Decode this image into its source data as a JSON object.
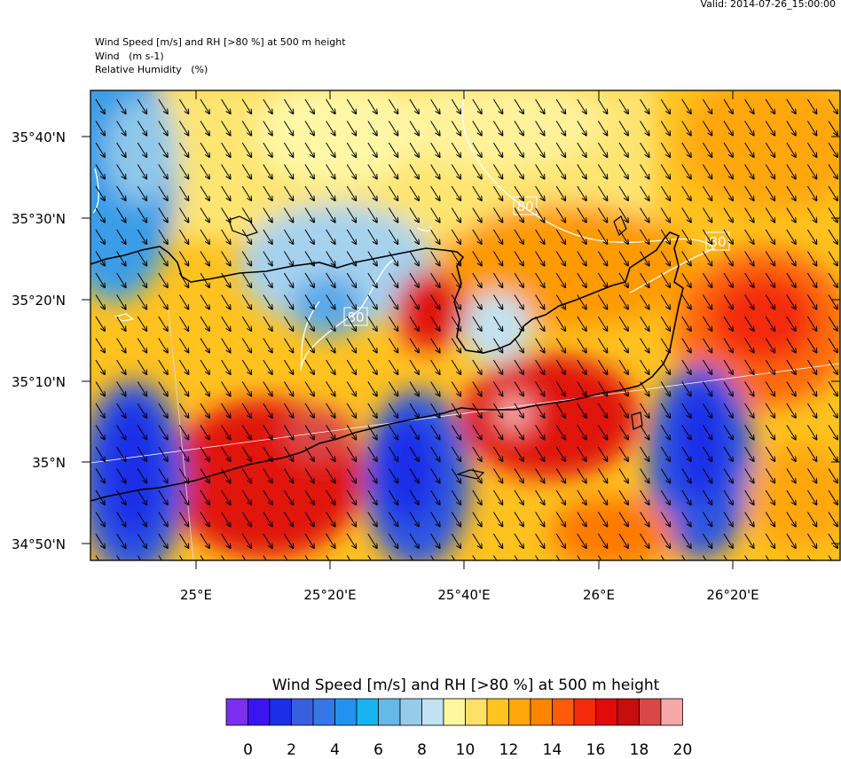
{
  "header": {
    "valid": "Valid: 2014-07-26_15:00:00",
    "line1": "Wind Speed [m/s] and RH [>80 %] at 500 m height",
    "line2": "Wind   (m s-1)",
    "line3": "Relative Humidity   (%)"
  },
  "map": {
    "lat_labels": [
      "35°40'N",
      "35°30'N",
      "35°20'N",
      "35°10'N",
      "35°N",
      "34°50'N"
    ],
    "lon_labels": [
      "25°E",
      "25°20'E",
      "25°40'E",
      "26°E",
      "26°20'E"
    ],
    "contour_labels": [
      "80",
      "80",
      "80"
    ],
    "wind_direction": "north-westerly (arrows pointing south-east)",
    "colors": {
      "coast": "#000000",
      "rh_contour": "#ffffff"
    }
  },
  "colorbar": {
    "title": "Wind Speed [m/s] and RH [>80 %] at 500 m height",
    "tick_labels": [
      "0",
      "2",
      "4",
      "6",
      "8",
      "10",
      "12",
      "14",
      "16",
      "18",
      "20"
    ],
    "colors": [
      "#7b2ff0",
      "#3a15f0",
      "#1b2ee8",
      "#3a5ee0",
      "#3576e8",
      "#2293f0",
      "#18b4f2",
      "#66b8e8",
      "#96ccea",
      "#c2e2f2",
      "#fff7a0",
      "#fde06a",
      "#ffc41e",
      "#ffa70b",
      "#ff8500",
      "#ff5b0c",
      "#f42a0a",
      "#e00c0c",
      "#c80d0d",
      "#d84848",
      "#f4a8a8"
    ]
  }
}
